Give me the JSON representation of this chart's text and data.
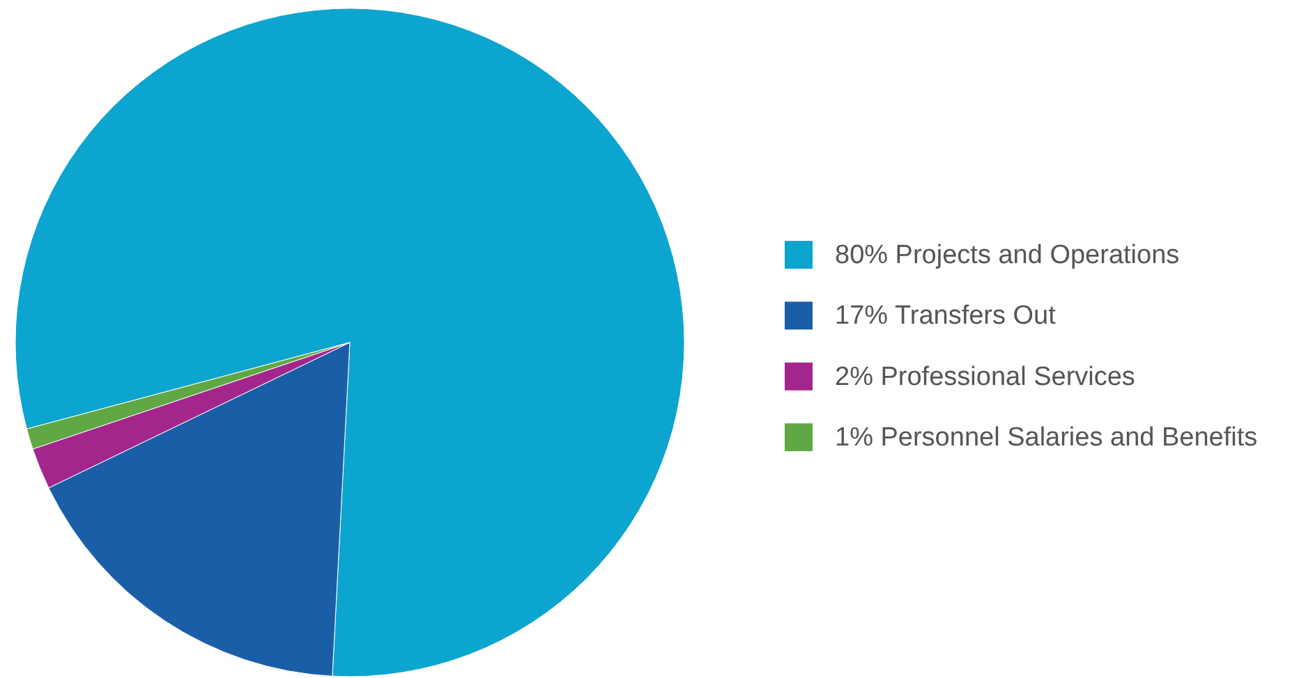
{
  "chart_data": {
    "type": "pie",
    "categories": [
      "80% Projects and Operations",
      "17% Transfers Out",
      "2% Professional Services",
      "1% Personnel Salaries and Benefits"
    ],
    "values": [
      80,
      17,
      2,
      1
    ],
    "colors": [
      "#0ca5cf",
      "#1a5ea8",
      "#a3268c",
      "#5fa843"
    ],
    "legend": "right"
  }
}
